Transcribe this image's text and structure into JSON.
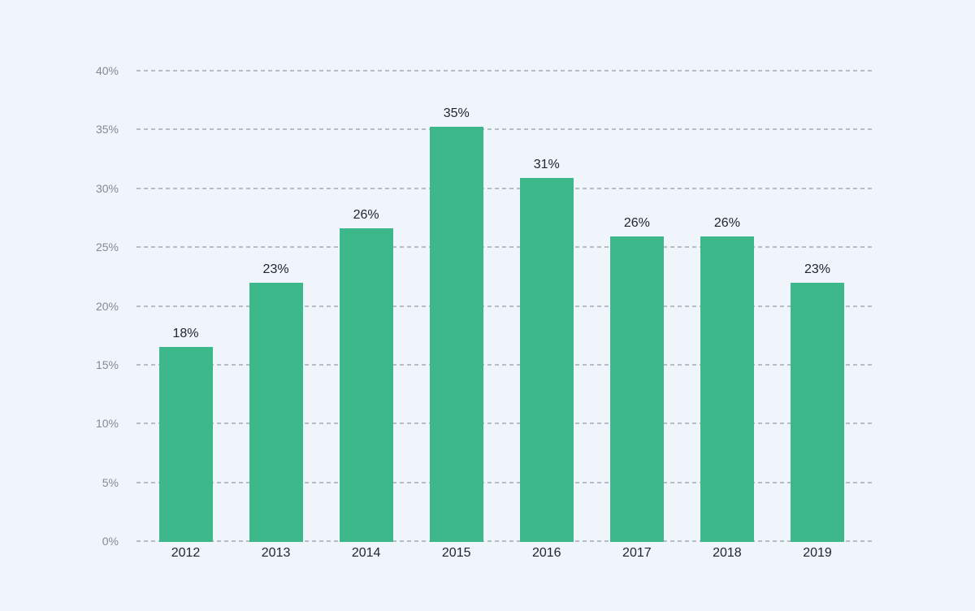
{
  "chart_data": {
    "type": "bar",
    "title": "",
    "xlabel": "",
    "ylabel": "",
    "categories": [
      "2012",
      "2013",
      "2014",
      "2015",
      "2016",
      "2017",
      "2018",
      "2019"
    ],
    "values": [
      18,
      23,
      26,
      35,
      31,
      26,
      26,
      23
    ],
    "value_labels": [
      "18%",
      "23%",
      "26%",
      "35%",
      "31%",
      "26%",
      "26%",
      "23%"
    ],
    "bar_visual_heights_pct": [
      16.5,
      22.0,
      26.6,
      35.2,
      30.9,
      25.9,
      25.9,
      22.0
    ],
    "ylim": [
      0,
      40
    ],
    "y_tick_step": 5,
    "y_tick_labels": [
      "40%",
      "35%",
      "30%",
      "25%",
      "20%",
      "15%",
      "10%",
      "5%",
      "0%"
    ],
    "grid": "horizontal-dashed",
    "legend": "none",
    "colors": {
      "background": "#eff5fa",
      "bar": "#3cb88a",
      "gridline": "#b6bdc5",
      "y_tick_text": "#838a93",
      "x_tick_text": "#21262e",
      "value_label_text": "#21262e"
    }
  }
}
